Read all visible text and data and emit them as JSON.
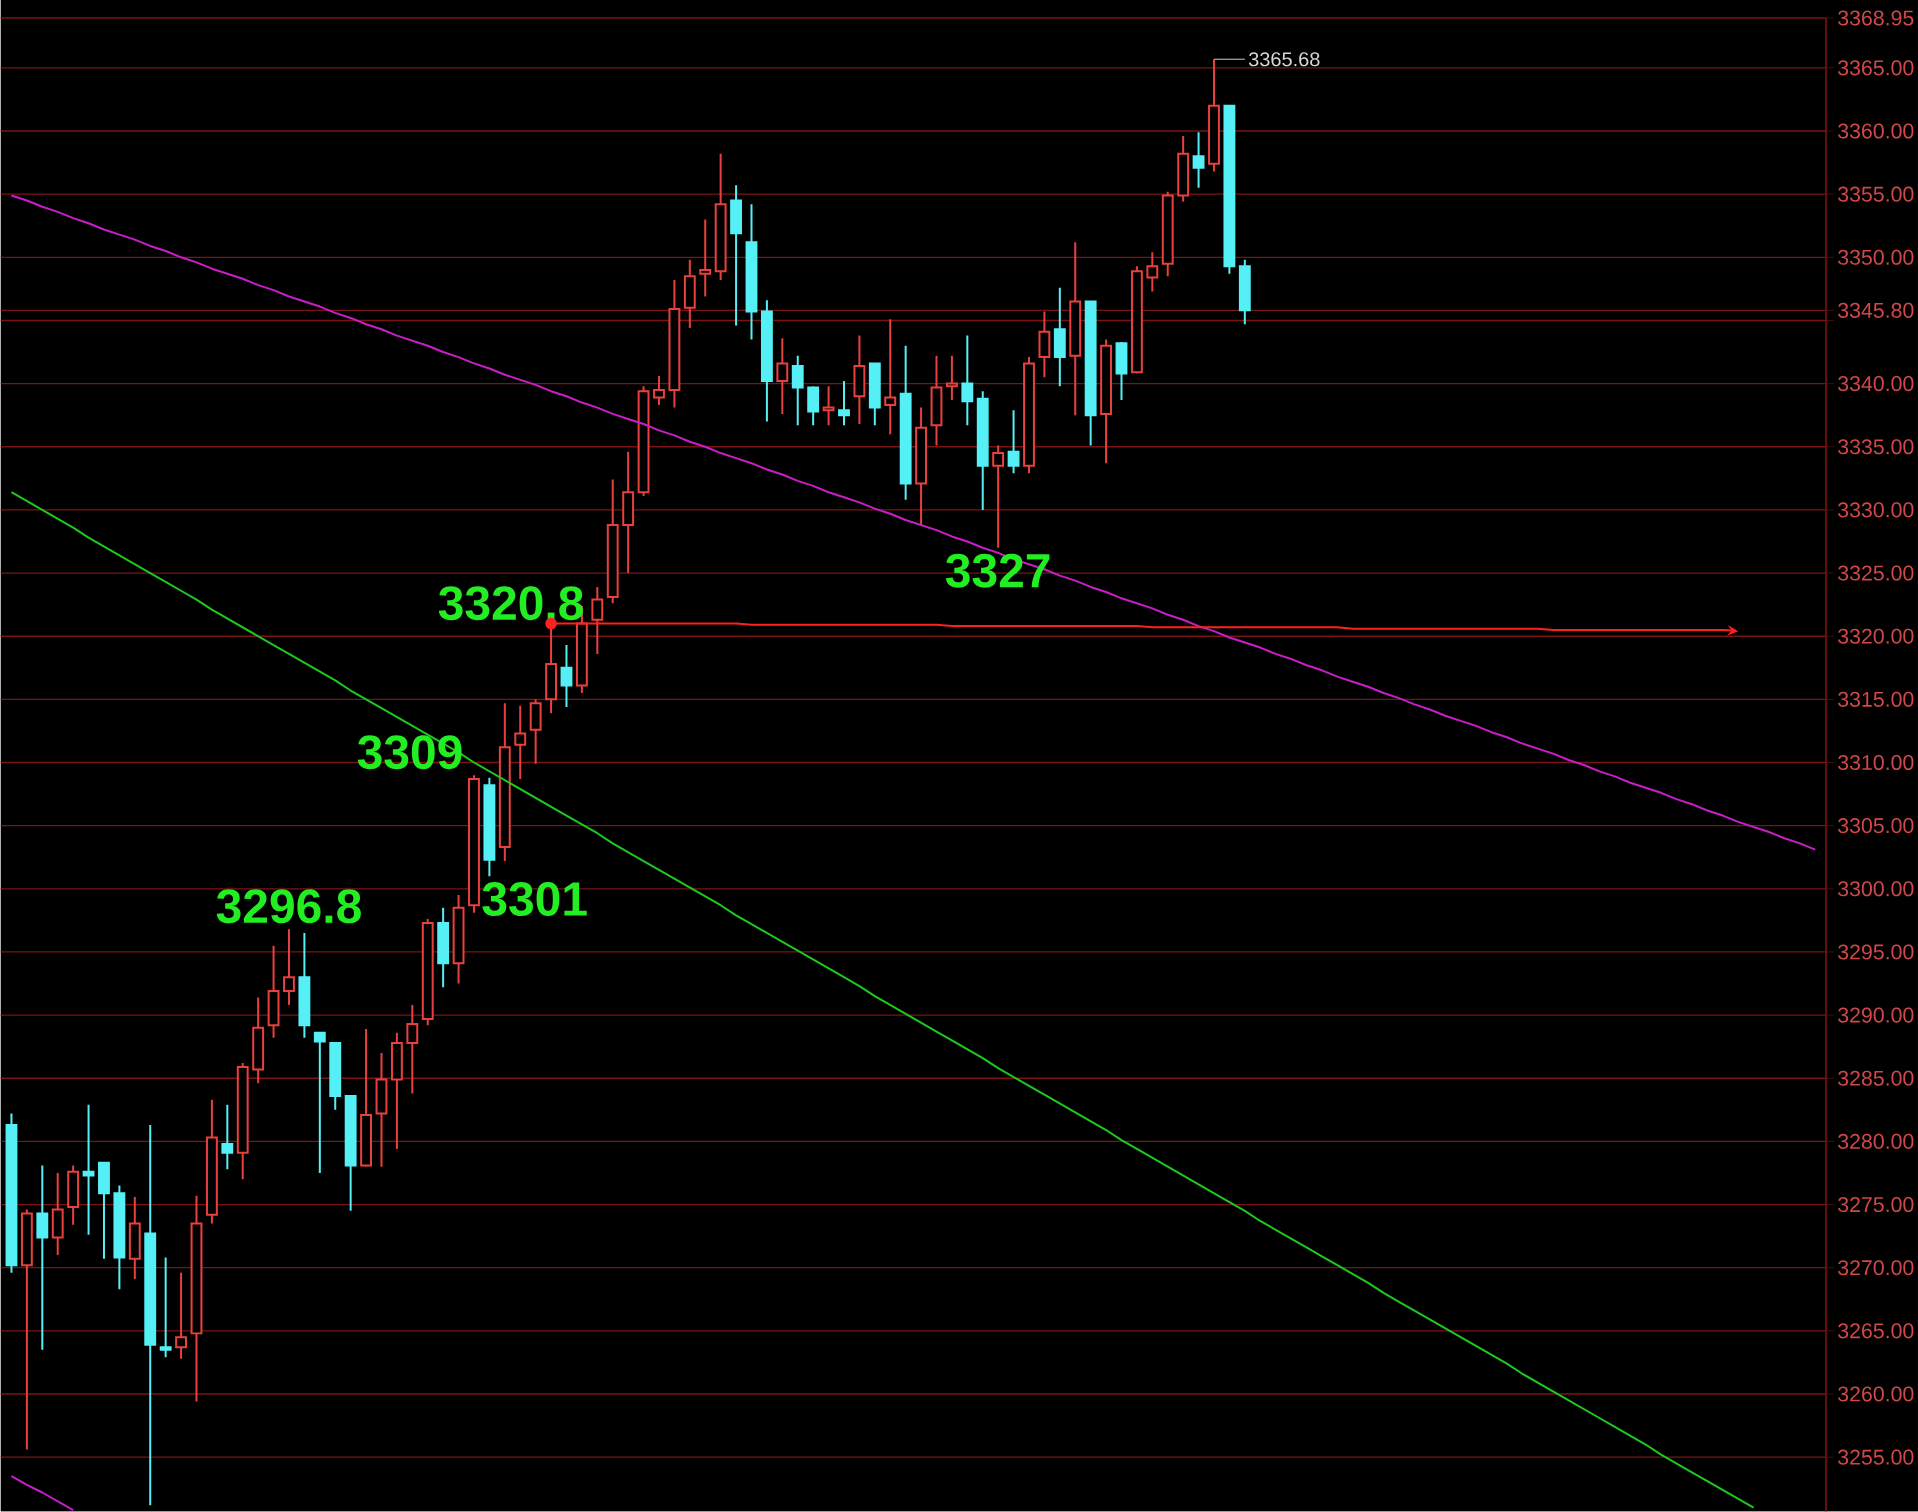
{
  "chart_data": {
    "type": "candlestick",
    "categories": [
      null,
      null,
      null,
      null,
      null,
      null,
      null,
      null,
      null,
      null,
      null,
      null,
      null,
      null,
      null,
      null,
      null,
      null,
      null,
      null,
      null,
      null,
      null,
      null,
      null,
      null,
      null,
      null,
      null,
      null,
      null,
      null,
      null,
      null,
      null,
      null,
      null,
      null,
      null,
      null,
      null,
      null,
      null,
      null,
      null,
      null,
      null,
      null,
      null,
      null,
      null,
      null,
      null,
      null,
      null,
      null,
      null,
      null,
      null,
      null,
      null,
      null,
      null,
      null,
      null,
      null,
      null,
      null,
      null,
      null,
      null,
      null,
      null,
      null,
      null,
      null,
      null,
      null,
      null,
      null,
      null,
      null,
      null,
      null,
      null,
      null,
      null,
      null,
      null,
      null,
      null,
      null,
      null,
      null,
      null,
      null,
      null,
      null,
      null,
      null,
      null,
      null,
      null,
      null,
      null,
      null,
      null,
      null,
      null,
      null,
      null,
      null,
      null,
      null,
      null,
      null,
      null,
      null
    ],
    "ohlc": [
      [
        3281.3,
        3282.2,
        3269.6,
        3270.2
      ],
      [
        3270.2,
        3274.6,
        3255.6,
        3274.3
      ],
      [
        3274.3,
        3278.1,
        3263.5,
        3272.4
      ],
      [
        3272.4,
        3277.5,
        3271.0,
        3274.6
      ],
      [
        3274.8,
        3278.1,
        3273.4,
        3277.6
      ],
      [
        3277.6,
        3282.9,
        3272.6,
        3277.3
      ],
      [
        3278.3,
        3278.3,
        3270.7,
        3275.9
      ],
      [
        3275.9,
        3276.5,
        3268.3,
        3270.8
      ],
      [
        3270.7,
        3275.6,
        3269.1,
        3273.5
      ],
      [
        3272.7,
        3281.3,
        3251.2,
        3263.9
      ],
      [
        3263.7,
        3270.8,
        3262.9,
        3263.5
      ],
      [
        3263.7,
        3269.6,
        3262.8,
        3264.5
      ],
      [
        3264.8,
        3275.7,
        3259.4,
        3273.5
      ],
      [
        3274.2,
        3283.3,
        3273.5,
        3280.3
      ],
      [
        3279.8,
        3282.9,
        3277.8,
        3279.1
      ],
      [
        3279.1,
        3286.2,
        3277.0,
        3285.9
      ],
      [
        3285.7,
        3291.4,
        3284.6,
        3289.0
      ],
      [
        3289.2,
        3295.5,
        3288.2,
        3291.9
      ],
      [
        3291.9,
        3296.8,
        3290.8,
        3293.0
      ],
      [
        3293.0,
        3296.5,
        3288.2,
        3289.2
      ],
      [
        3288.6,
        3288.6,
        3277.5,
        3287.9
      ],
      [
        3287.8,
        3287.8,
        3282.5,
        3283.6
      ],
      [
        3283.6,
        3283.6,
        3274.5,
        3278.1
      ],
      [
        3278.1,
        3288.9,
        3278.0,
        3282.1
      ],
      [
        3282.2,
        3287.0,
        3278.0,
        3284.9
      ],
      [
        3284.9,
        3288.6,
        3279.4,
        3287.8
      ],
      [
        3287.8,
        3290.8,
        3283.8,
        3289.3
      ],
      [
        3289.7,
        3297.6,
        3289.2,
        3297.3
      ],
      [
        3297.3,
        3298.5,
        3292.2,
        3294.1
      ],
      [
        3294.1,
        3299.5,
        3292.5,
        3298.5
      ],
      [
        3298.7,
        3309,
        3298.1,
        3308.7
      ],
      [
        3308.2,
        3308.8,
        3301,
        3302.3
      ],
      [
        3303.3,
        3314.7,
        3302.2,
        3311.2
      ],
      [
        3311.4,
        3314.5,
        3308.7,
        3312.3
      ],
      [
        3312.6,
        3315.0,
        3309.9,
        3314.7
      ],
      [
        3315.0,
        3320.8,
        3313.9,
        3317.8
      ],
      [
        3317.5,
        3319.3,
        3314.4,
        3316.1
      ],
      [
        3316.1,
        3322.4,
        3315.5,
        3321.0
      ],
      [
        3321.3,
        3323.9,
        3318.6,
        3322.9
      ],
      [
        3323.1,
        3332.4,
        3322.6,
        3328.8
      ],
      [
        3328.8,
        3334.6,
        3325.0,
        3331.4
      ],
      [
        3331.4,
        3339.8,
        3331.1,
        3339.4
      ],
      [
        3338.9,
        3340.6,
        3338.3,
        3339.5
      ],
      [
        3339.5,
        3348.2,
        3338.1,
        3345.9
      ],
      [
        3346.0,
        3349.8,
        3344.4,
        3348.5
      ],
      [
        3348.7,
        3353.0,
        3346.9,
        3349.0
      ],
      [
        3348.9,
        3358.2,
        3348.2,
        3354.2
      ],
      [
        3354.5,
        3355.7,
        3344.6,
        3351.9
      ],
      [
        3351.2,
        3354.2,
        3343.5,
        3345.7
      ],
      [
        3345.7,
        3346.6,
        3337.0,
        3340.2
      ],
      [
        3340.2,
        3343.6,
        3337.6,
        3341.6
      ],
      [
        3341.4,
        3342.2,
        3336.7,
        3339.7
      ],
      [
        3339.7,
        3339.8,
        3336.7,
        3337.8
      ],
      [
        3337.9,
        3339.8,
        3336.7,
        3338.1
      ],
      [
        3337.9,
        3340.2,
        3336.7,
        3337.5
      ],
      [
        3339.0,
        3343.8,
        3336.8,
        3341.4
      ],
      [
        3341.6,
        3341.6,
        3336.7,
        3338.1
      ],
      [
        3338.3,
        3345.1,
        3336.0,
        3338.9
      ],
      [
        3339.2,
        3343.0,
        3330.8,
        3332.1
      ],
      [
        3332.1,
        3338.1,
        3328.8,
        3336.5
      ],
      [
        3336.7,
        3342.2,
        3335.1,
        3339.7
      ],
      [
        3339.8,
        3342.2,
        3338.7,
        3340.0
      ],
      [
        3340.0,
        3343.8,
        3336.7,
        3338.6
      ],
      [
        3338.8,
        3339.4,
        3330.0,
        3333.5
      ],
      [
        3333.5,
        3335.1,
        3327,
        3334.5
      ],
      [
        3334.6,
        3337.9,
        3332.9,
        3333.5
      ],
      [
        3333.5,
        3342.1,
        3332.9,
        3341.6
      ],
      [
        3342.1,
        3345.7,
        3340.5,
        3344.1
      ],
      [
        3344.3,
        3347.6,
        3339.8,
        3342.1
      ],
      [
        3342.2,
        3351.2,
        3337.5,
        3346.5
      ],
      [
        3346.5,
        3346.5,
        3335.1,
        3337.5
      ],
      [
        3337.6,
        3343.5,
        3333.7,
        3343.0
      ],
      [
        3343.2,
        3343.3,
        3338.7,
        3340.8
      ],
      [
        3340.9,
        3349.3,
        3340.8,
        3348.9
      ],
      [
        3348.4,
        3350.4,
        3347.3,
        3349.3
      ],
      [
        3349.5,
        3355.2,
        3348.5,
        3354.9
      ],
      [
        3354.9,
        3359.6,
        3354.4,
        3358.2
      ],
      [
        3358.0,
        3359.9,
        3355.5,
        3357.1
      ],
      [
        3357.4,
        3365.68,
        3356.8,
        3362.0
      ],
      [
        3362.0,
        3362.0,
        3348.7,
        3349.3
      ],
      [
        3349.3,
        3349.8,
        3344.7,
        3345.8
      ],
      null,
      null,
      null,
      null,
      null,
      null,
      null,
      null,
      null,
      null,
      null,
      null,
      null,
      null,
      null,
      null,
      null,
      null,
      null,
      null,
      null,
      null,
      null,
      null,
      null,
      null,
      null,
      null,
      null,
      null,
      null,
      null,
      null,
      null,
      null,
      null,
      null
    ],
    "colors": [
      "#55f0f5",
      "#e8403c",
      "#55f0f5",
      "#e8403c",
      "#e8403c",
      "#55f0f5",
      "#55f0f5",
      "#55f0f5",
      "#e8403c",
      "#55f0f5",
      "#55f0f5",
      "#e8403c",
      "#e8403c",
      "#e8403c",
      "#55f0f5",
      "#e8403c",
      "#e8403c",
      "#e8403c",
      "#e8403c",
      "#55f0f5",
      "#55f0f5",
      "#55f0f5",
      "#55f0f5",
      "#e8403c",
      "#e8403c",
      "#e8403c",
      "#e8403c",
      "#e8403c",
      "#55f0f5",
      "#e8403c",
      "#e8403c",
      "#55f0f5",
      "#e8403c",
      "#e8403c",
      "#e8403c",
      "#e8403c",
      "#55f0f5",
      "#e8403c",
      "#e8403c",
      "#e8403c",
      "#e8403c",
      "#e8403c",
      "#e8403c",
      "#e8403c",
      "#e8403c",
      "#e8403c",
      "#e8403c",
      "#55f0f5",
      "#55f0f5",
      "#55f0f5",
      "#e8403c",
      "#55f0f5",
      "#55f0f5",
      "#e8403c",
      "#55f0f5",
      "#e8403c",
      "#55f0f5",
      "#e8403c",
      "#55f0f5",
      "#e8403c",
      "#e8403c",
      "#e8403c",
      "#55f0f5",
      "#55f0f5",
      "#e8403c",
      "#55f0f5",
      "#e8403c",
      "#e8403c",
      "#55f0f5",
      "#e8403c",
      "#55f0f5",
      "#e8403c",
      "#55f0f5",
      "#e8403c",
      "#e8403c",
      "#e8403c",
      "#e8403c",
      "#55f0f5",
      "#e8403c",
      "#55f0f5",
      "#55f0f5",
      null,
      null,
      null,
      null,
      null,
      null,
      null,
      null,
      null,
      null,
      null,
      null,
      null,
      null,
      null,
      null,
      null,
      null,
      null,
      null,
      null,
      null,
      null,
      null,
      null,
      null,
      null,
      null,
      null,
      null,
      null,
      null,
      null,
      null,
      null,
      null,
      null
    ],
    "series": [
      {
        "type": "line",
        "color": "#c81ec8",
        "values": [
          3354.9,
          3354.5,
          3354.0,
          3353.6,
          3353.1,
          3352.7,
          3352.2,
          3351.8,
          3351.4,
          3350.9,
          3350.5,
          3350.0,
          3349.6,
          3349.1,
          3348.7,
          3348.3,
          3347.8,
          3347.4,
          3346.9,
          3346.5,
          3346.1,
          3345.6,
          3345.2,
          3344.7,
          3344.3,
          3343.8,
          3343.4,
          3343.0,
          3342.5,
          3342.1,
          3341.6,
          3341.2,
          3340.7,
          3340.3,
          3339.9,
          3339.4,
          3339.0,
          3338.5,
          3338.1,
          3337.6,
          3337.2,
          3336.8,
          3336.3,
          3335.9,
          3335.4,
          3335.0,
          3334.5,
          3334.1,
          3333.7,
          3333.2,
          3332.8,
          3332.3,
          3331.9,
          3331.4,
          3331.0,
          3330.6,
          3330.1,
          3329.7,
          3329.2,
          3328.8,
          3328.4,
          3327.9,
          3327.5,
          3327.0,
          3326.6,
          3326.1,
          3325.7,
          3325.3,
          3324.8,
          3324.4,
          3323.9,
          3323.5,
          3323.0,
          3322.6,
          3322.2,
          3321.7,
          3321.3,
          3320.8,
          3320.4,
          3319.9,
          3319.5,
          3319.1,
          3318.6,
          3318.2,
          3317.7,
          3317.3,
          3316.8,
          3316.4,
          3316.0,
          3315.5,
          3315.1,
          3314.6,
          3314.2,
          3313.7,
          3313.3,
          3312.9,
          3312.4,
          3312.0,
          3311.5,
          3311.1,
          3310.7,
          3310.2,
          3309.8,
          3309.3,
          3308.9,
          3308.4,
          3308.0,
          3307.6,
          3307.1,
          3306.7,
          3306.2,
          3305.8,
          3305.3,
          3304.9,
          3304.5,
          3304.0,
          3303.6,
          3303.1
        ]
      },
      {
        "type": "line",
        "color": "#c81ec8",
        "values": [
          3253.5,
          3252.8,
          3252.2,
          3251.5,
          3250.8,
          null,
          null,
          null,
          null,
          null,
          null,
          null,
          null,
          null,
          null,
          null,
          null,
          null,
          null,
          null,
          null,
          null,
          null,
          null,
          null,
          null,
          null,
          null,
          null,
          null,
          null,
          null,
          null,
          null,
          null,
          null,
          null,
          null,
          null,
          null,
          null,
          null,
          null,
          null,
          null,
          null,
          null,
          null,
          null,
          null,
          null,
          null,
          null,
          null,
          null,
          null,
          null,
          null,
          null,
          null,
          null,
          null,
          null,
          null,
          null,
          null,
          null,
          null,
          null,
          null,
          null,
          null,
          null,
          null,
          null,
          null,
          null,
          null,
          null,
          null,
          null,
          null,
          null,
          null,
          null,
          null,
          null,
          null,
          null,
          null,
          null,
          null,
          null,
          null,
          null,
          null,
          null,
          null,
          null,
          null,
          null,
          null,
          null,
          null,
          null,
          null,
          null,
          null,
          null,
          null,
          null,
          null,
          null,
          null,
          null,
          null,
          null,
          null
        ]
      },
      {
        "type": "line",
        "color": "#1ec81e",
        "values": [
          3331.4,
          3330.7,
          3330.0,
          3329.3,
          3328.6,
          3327.8,
          3327.1,
          3326.4,
          3325.7,
          3325.0,
          3324.3,
          3323.6,
          3322.9,
          3322.1,
          3321.4,
          3320.7,
          3320.0,
          3319.3,
          3318.6,
          3317.9,
          3317.2,
          3316.5,
          3315.7,
          3315.0,
          3314.3,
          3313.6,
          3312.9,
          3312.2,
          3311.5,
          3310.8,
          3310.0,
          3309.3,
          3308.6,
          3307.9,
          3307.2,
          3306.5,
          3305.8,
          3305.1,
          3304.4,
          3303.6,
          3302.9,
          3302.2,
          3301.5,
          3300.8,
          3300.1,
          3299.4,
          3298.7,
          3297.9,
          3297.2,
          3296.5,
          3295.8,
          3295.1,
          3294.4,
          3293.7,
          3293.0,
          3292.3,
          3291.5,
          3290.8,
          3290.1,
          3289.4,
          3288.7,
          3288.0,
          3287.3,
          3286.6,
          3285.8,
          3285.1,
          3284.4,
          3283.7,
          3283.0,
          3282.3,
          3281.6,
          3280.9,
          3280.1,
          3279.4,
          3278.7,
          3278.0,
          3277.3,
          3276.6,
          3275.9,
          3275.2,
          3274.5,
          3273.7,
          3273.0,
          3272.3,
          3271.6,
          3270.9,
          3270.2,
          3269.5,
          3268.8,
          3268.0,
          3267.3,
          3266.6,
          3265.9,
          3265.2,
          3264.5,
          3263.8,
          3263.1,
          3262.4,
          3261.6,
          3260.9,
          3260.2,
          3259.5,
          3258.8,
          3258.1,
          3257.4,
          3256.7,
          3256.0,
          3255.2,
          3254.5,
          3253.8,
          3253.1,
          3252.4,
          3251.7,
          3251.0,
          null,
          null,
          null,
          null
        ]
      },
      {
        "type": "scatter",
        "color": "#ff2020",
        "marker": "circle",
        "values": [
          null,
          null,
          null,
          null,
          null,
          null,
          null,
          null,
          null,
          null,
          null,
          null,
          null,
          null,
          null,
          null,
          null,
          null,
          null,
          null,
          null,
          null,
          null,
          null,
          null,
          null,
          null,
          null,
          null,
          null,
          null,
          null,
          null,
          null,
          null,
          3321.0,
          null,
          null,
          null,
          null,
          null,
          null,
          null,
          null,
          null,
          null,
          null,
          null,
          null,
          null,
          null,
          null,
          null,
          null,
          null,
          null,
          null,
          null,
          null,
          null,
          null,
          null,
          null,
          null,
          null,
          null,
          null,
          null,
          null,
          null,
          null,
          null,
          null,
          null,
          null,
          null,
          null,
          null,
          null,
          null,
          null,
          null,
          null,
          null,
          null,
          null,
          null,
          null,
          null,
          null,
          null,
          null,
          null,
          null,
          null,
          null,
          null,
          null,
          null,
          null,
          null,
          null,
          null,
          null,
          null,
          null,
          null,
          null,
          null,
          null,
          null,
          null,
          null,
          null,
          null,
          null,
          null,
          null
        ]
      },
      {
        "type": "line",
        "color": "#ff2020",
        "values": [
          null,
          null,
          null,
          null,
          null,
          null,
          null,
          null,
          null,
          null,
          null,
          null,
          null,
          null,
          null,
          null,
          null,
          null,
          null,
          null,
          null,
          null,
          null,
          null,
          null,
          null,
          null,
          null,
          null,
          null,
          null,
          null,
          null,
          null,
          null,
          3321.0,
          3321.0,
          3321.0,
          3321.0,
          3321.0,
          3321.0,
          3321.0,
          3321.0,
          3321.0,
          3321.0,
          3321.0,
          3321.0,
          3321.0,
          3320.9,
          3320.9,
          3320.9,
          3320.9,
          3320.9,
          3320.9,
          3320.9,
          3320.9,
          3320.9,
          3320.9,
          3320.9,
          3320.9,
          3320.9,
          3320.8,
          3320.8,
          3320.8,
          3320.8,
          3320.8,
          3320.8,
          3320.8,
          3320.8,
          3320.8,
          3320.8,
          3320.8,
          3320.8,
          3320.8,
          3320.7,
          3320.7,
          3320.7,
          3320.7,
          3320.7,
          3320.7,
          3320.7,
          3320.7,
          3320.7,
          3320.7,
          3320.7,
          3320.7,
          3320.7,
          3320.6,
          3320.6,
          3320.6,
          3320.6,
          3320.6,
          3320.6,
          3320.6,
          3320.6,
          3320.6,
          3320.6,
          3320.6,
          3320.6,
          3320.6,
          3320.5,
          3320.5,
          3320.5,
          3320.5,
          3320.5,
          3320.5,
          3320.5,
          3320.5,
          3320.5,
          3320.5,
          3320.5,
          3320.5,
          3320.4,
          null,
          null,
          null,
          null,
          null
        ]
      }
    ],
    "ylim": [
      3250.7,
      3368.95
    ],
    "yticks": [
      {
        "value": 3255,
        "label": "3255.00"
      },
      {
        "value": 3260,
        "label": "3260.00"
      },
      {
        "value": 3265,
        "label": "3265.00"
      },
      {
        "value": 3270,
        "label": "3270.00"
      },
      {
        "value": 3275,
        "label": "3275.00"
      },
      {
        "value": 3280,
        "label": "3280.00"
      },
      {
        "value": 3285,
        "label": "3285.00"
      },
      {
        "value": 3290,
        "label": "3290.00"
      },
      {
        "value": 3295,
        "label": "3295.00"
      },
      {
        "value": 3300,
        "label": "3300.00"
      },
      {
        "value": 3305,
        "label": "3305.00"
      },
      {
        "value": 3310,
        "label": "3310.00"
      },
      {
        "value": 3315,
        "label": "3315.00"
      },
      {
        "value": 3320,
        "label": "3320.00"
      },
      {
        "value": 3325,
        "label": "3325.00"
      },
      {
        "value": 3330,
        "label": "3330.00"
      },
      {
        "value": 3335,
        "label": "3335.00"
      },
      {
        "value": 3340,
        "label": "3340.00"
      },
      {
        "value": 3345,
        "label": null
      },
      {
        "value": 3345.8,
        "label": "3345.80"
      },
      {
        "value": 3350,
        "label": "3350.00"
      },
      {
        "value": 3355,
        "label": "3355.00"
      },
      {
        "value": 3360,
        "label": "3360.00"
      },
      {
        "value": 3365,
        "label": "3365.00"
      },
      {
        "value": 3368.95,
        "label": "3368.95"
      }
    ],
    "grid": "y",
    "tick_labels": "y",
    "annotations": [
      "3296.8",
      "3309",
      "3301",
      "3320.8",
      "3327",
      "3365.68"
    ]
  }
}
